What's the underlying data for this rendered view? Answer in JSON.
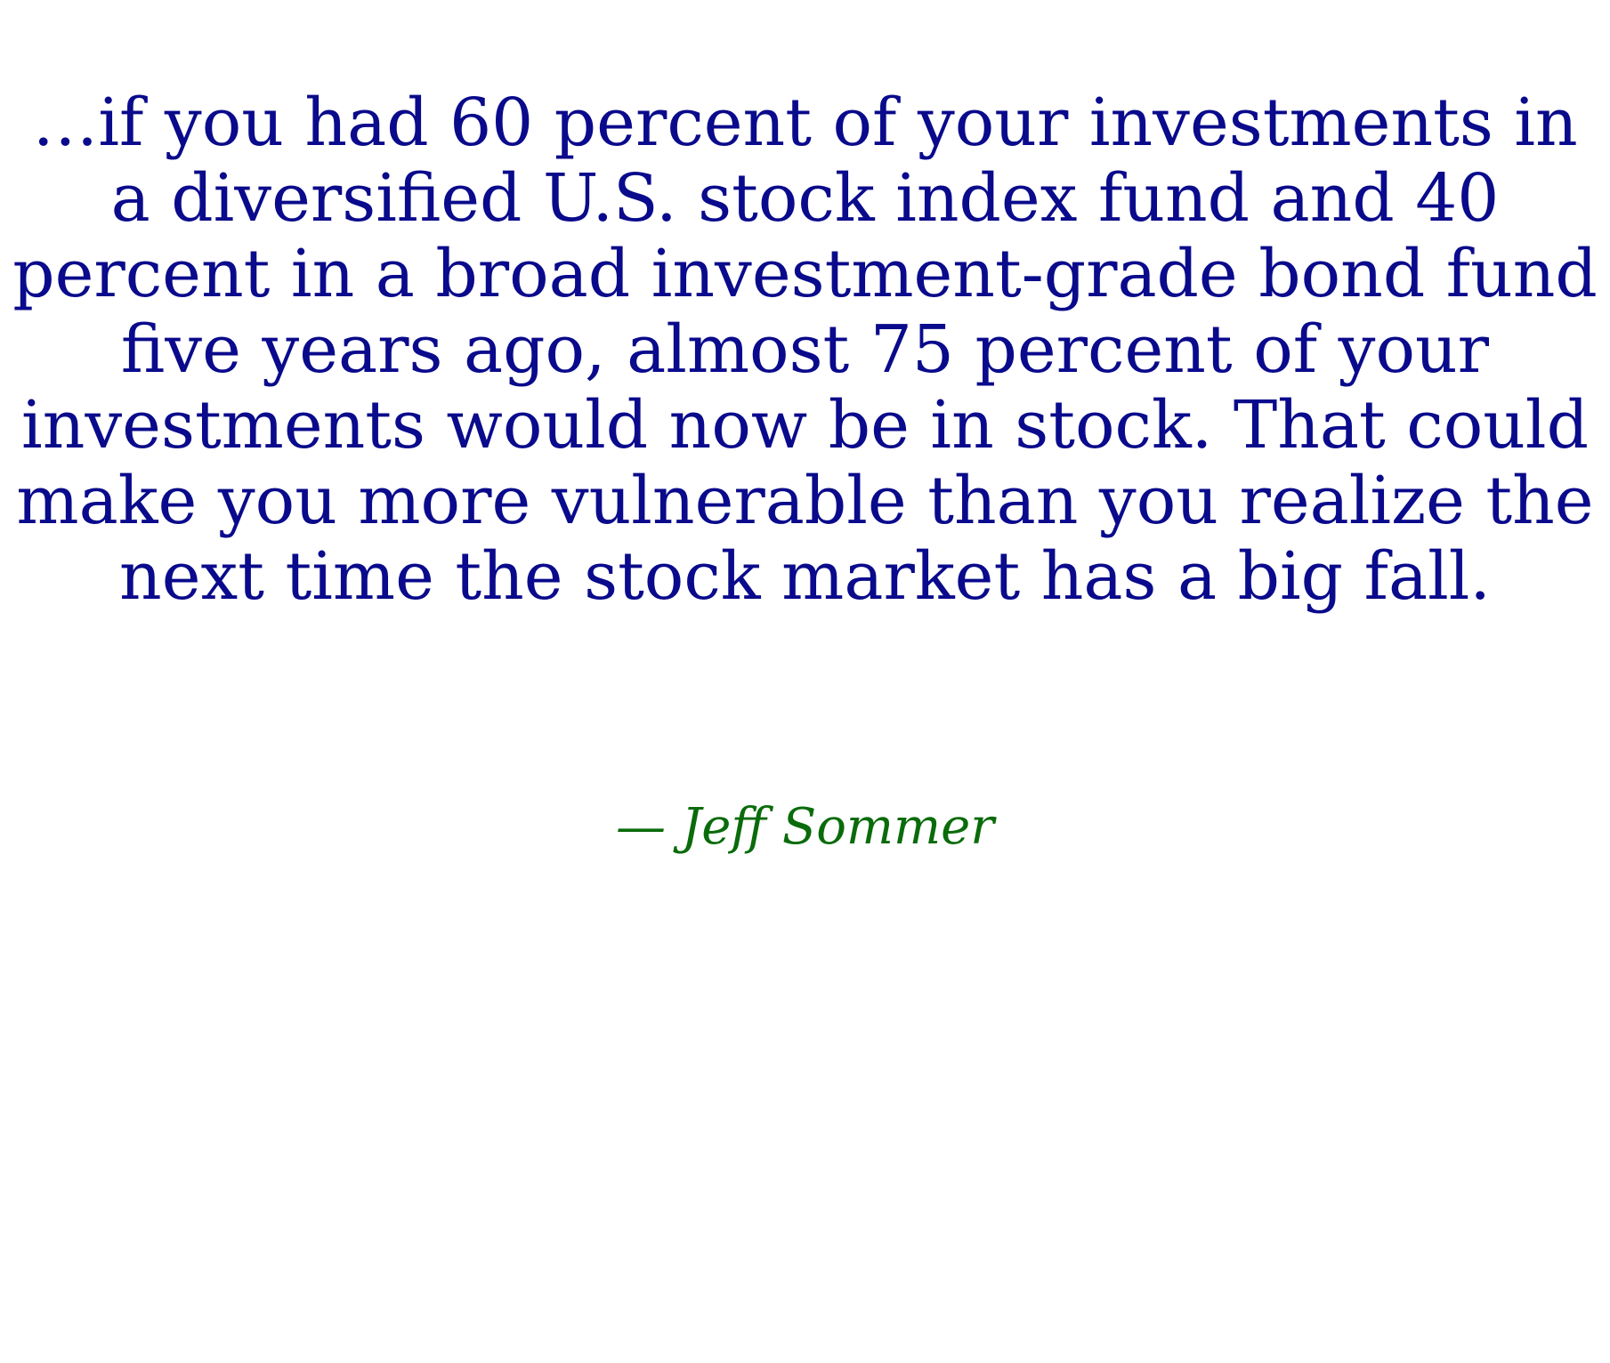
{
  "quote": {
    "lines": [
      "…if you had 60 percent of your investments in",
      "a diversified U.S. stock index fund and 40",
      "percent in a broad investment-grade bond fund",
      "five years ago, almost 75 percent of your",
      "investments would now be in stock. That could",
      "make you more vulnerable than you realize the",
      "next time the stock market has a big fall."
    ],
    "color": "#0a0a8c"
  },
  "attribution": {
    "text": "— Jeff Sommer",
    "color": "#0a6b0a"
  }
}
